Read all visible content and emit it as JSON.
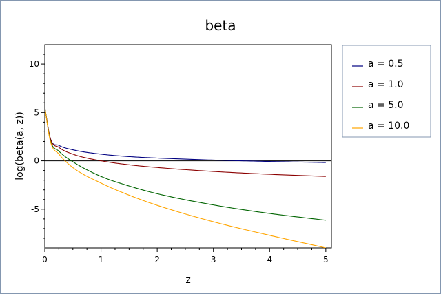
{
  "chart_data": {
    "type": "line",
    "title": "beta",
    "xlabel": "z",
    "ylabel": "log(beta(a, z))",
    "xlim": [
      0,
      5.1
    ],
    "ylim": [
      -9,
      12
    ],
    "x_ticks": [
      0,
      1,
      2,
      3,
      4,
      5
    ],
    "y_ticks": [
      -5,
      0,
      5,
      10
    ],
    "x_tick_labels": [
      "0",
      "1",
      "2",
      "3",
      "4",
      "5"
    ],
    "y_tick_labels": [
      "-5",
      "0",
      "5",
      "10"
    ],
    "grid": false,
    "legend_position": "right",
    "series": [
      {
        "name": "a = 0.5",
        "a": 0.5,
        "color": "#000080",
        "x": [
          0.005,
          0.1,
          0.25,
          0.5,
          1.0,
          1.5,
          2.0,
          3.0,
          4.0,
          5.0
        ],
        "y": [
          5.3,
          2.3,
          1.6,
          1.14,
          0.69,
          0.44,
          0.29,
          0.08,
          -0.07,
          -0.18
        ]
      },
      {
        "name": "a = 1.0",
        "a": 1.0,
        "color": "#8b0000",
        "x": [
          0.005,
          0.1,
          0.25,
          0.5,
          1.0,
          1.5,
          2.0,
          3.0,
          4.0,
          5.0
        ],
        "y": [
          5.3,
          2.3,
          1.39,
          0.69,
          0.0,
          -0.41,
          -0.69,
          -1.1,
          -1.39,
          -1.61
        ]
      },
      {
        "name": "a = 5.0",
        "a": 5.0,
        "color": "#006400",
        "x": [
          0.005,
          0.1,
          0.25,
          0.5,
          1.0,
          1.5,
          2.0,
          3.0,
          4.0,
          5.0
        ],
        "y": [
          5.3,
          2.1,
          1.0,
          -0.1,
          -1.61,
          -2.6,
          -3.4,
          -4.56,
          -5.44,
          -6.14
        ]
      },
      {
        "name": "a = 10.0",
        "a": 10.0,
        "color": "#ffa500",
        "x": [
          0.005,
          0.1,
          0.25,
          0.5,
          1.0,
          1.5,
          2.0,
          3.0,
          4.0,
          5.0
        ],
        "y": [
          5.3,
          2.0,
          0.7,
          -0.7,
          -2.3,
          -3.55,
          -4.6,
          -6.3,
          -7.7,
          -9.0
        ]
      }
    ]
  }
}
